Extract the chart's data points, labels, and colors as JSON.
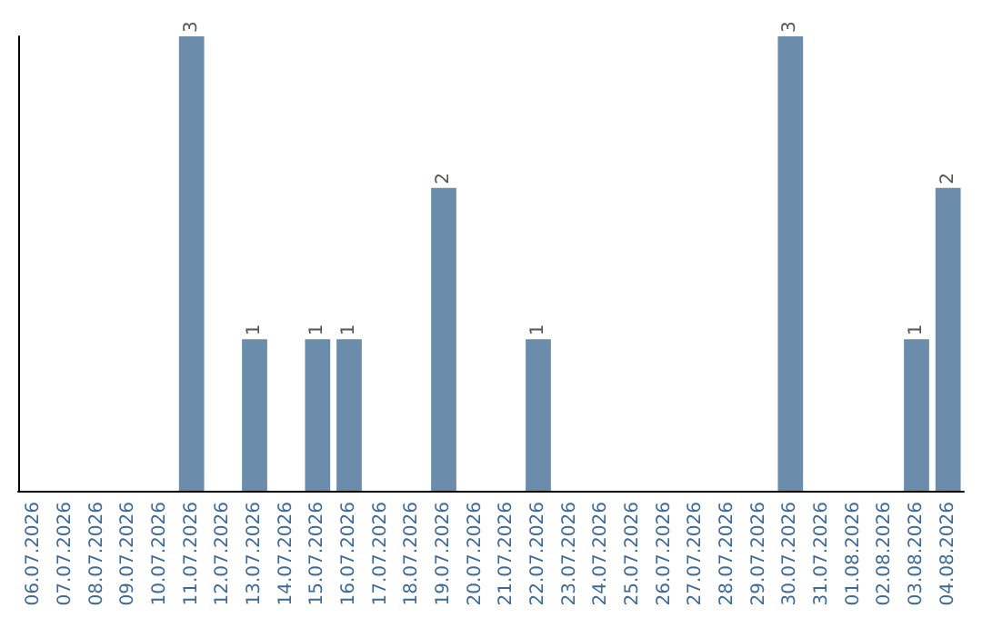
{
  "chart_data": {
    "type": "bar",
    "categories": [
      "06.07.2026",
      "07.07.2026",
      "08.07.2026",
      "09.07.2026",
      "10.07.2026",
      "11.07.2026",
      "12.07.2026",
      "13.07.2026",
      "14.07.2026",
      "15.07.2026",
      "16.07.2026",
      "17.07.2026",
      "18.07.2026",
      "19.07.2026",
      "20.07.2026",
      "21.07.2026",
      "22.07.2026",
      "23.07.2026",
      "24.07.2026",
      "25.07.2026",
      "26.07.2026",
      "27.07.2026",
      "28.07.2026",
      "29.07.2026",
      "30.07.2026",
      "31.07.2026",
      "01.08.2026",
      "02.08.2026",
      "03.08.2026",
      "04.08.2026"
    ],
    "values": [
      0,
      0,
      0,
      0,
      0,
      3,
      0,
      1,
      0,
      1,
      1,
      0,
      0,
      2,
      0,
      0,
      1,
      0,
      0,
      0,
      0,
      0,
      0,
      0,
      3,
      0,
      0,
      0,
      1,
      2
    ],
    "value_labels": [
      null,
      null,
      null,
      null,
      null,
      "3",
      null,
      "1",
      null,
      "1",
      "1",
      null,
      null,
      "2",
      null,
      null,
      "1",
      null,
      null,
      null,
      null,
      null,
      null,
      null,
      "3",
      null,
      null,
      null,
      "1",
      "2"
    ],
    "color": "#6b8cab",
    "tick_labels": "x"
  }
}
